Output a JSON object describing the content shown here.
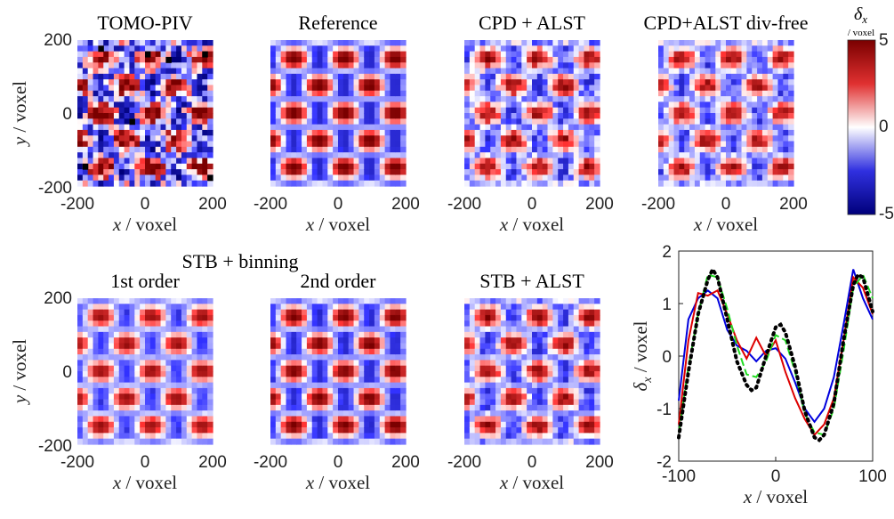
{
  "colormap": {
    "negative_color": "#00007a",
    "zero_color": "#ffffff",
    "positive_color": "#7a0000",
    "symbol": "δ",
    "subscript": "x",
    "unit": "/ voxel",
    "ticks": [
      "5",
      "0",
      "-5"
    ],
    "range": [
      -5,
      5
    ]
  },
  "chart_data": [
    {
      "type": "heatmap",
      "title": "TOMO-PIV",
      "xlabel_var": "x",
      "xlabel_unit": "/ voxel",
      "ylabel_var": "y",
      "ylabel_unit": "/ voxel",
      "xticks": [
        "-200",
        "0",
        "200"
      ],
      "yticks": [
        "200",
        "0",
        "-200"
      ],
      "xlim": [
        -200,
        200
      ],
      "ylim": [
        -200,
        200
      ],
      "field": "δx(x,y)",
      "amplitude": 1.0,
      "noise": 0.55
    },
    {
      "type": "heatmap",
      "title": "Reference",
      "xlabel_var": "x",
      "xlabel_unit": "/ voxel",
      "ylabel_var": "",
      "ylabel_unit": "",
      "xticks": [
        "-200",
        "0",
        "200"
      ],
      "yticks": [],
      "xlim": [
        -200,
        200
      ],
      "ylim": [
        -200,
        200
      ],
      "field": "δx(x,y)",
      "amplitude": 1.0,
      "noise": 0.0
    },
    {
      "type": "heatmap",
      "title": "CPD + ALST",
      "xlabel_var": "x",
      "xlabel_unit": "/ voxel",
      "ylabel_var": "",
      "ylabel_unit": "",
      "xticks": [
        "-200",
        "0",
        "200"
      ],
      "yticks": [],
      "xlim": [
        -200,
        200
      ],
      "ylim": [
        -200,
        200
      ],
      "field": "δx(x,y)",
      "amplitude": 0.75,
      "noise": 0.22
    },
    {
      "type": "heatmap",
      "title": "CPD+ALST div-free",
      "xlabel_var": "x",
      "xlabel_unit": "/ voxel",
      "ylabel_var": "",
      "ylabel_unit": "",
      "xticks": [
        "-200",
        "0",
        "200"
      ],
      "yticks": [],
      "xlim": [
        -200,
        200
      ],
      "ylim": [
        -200,
        200
      ],
      "field": "δx(x,y)",
      "amplitude": 0.75,
      "noise": 0.18
    },
    {
      "type": "heatmap",
      "title": "1st order",
      "xlabel_var": "x",
      "xlabel_unit": "/ voxel",
      "ylabel_var": "y",
      "ylabel_unit": "/ voxel",
      "xticks": [
        "-200",
        "0",
        "200"
      ],
      "yticks": [
        "200",
        "0",
        "-200"
      ],
      "xlim": [
        -200,
        200
      ],
      "ylim": [
        -200,
        200
      ],
      "field": "δx(x,y)",
      "amplitude": 0.8,
      "noise": 0.05
    },
    {
      "type": "heatmap",
      "title": "2nd order",
      "xlabel_var": "x",
      "xlabel_unit": "/ voxel",
      "ylabel_var": "",
      "ylabel_unit": "",
      "xticks": [
        "-200",
        "0",
        "200"
      ],
      "yticks": [],
      "xlim": [
        -200,
        200
      ],
      "ylim": [
        -200,
        200
      ],
      "field": "δx(x,y)",
      "amplitude": 0.95,
      "noise": 0.04
    },
    {
      "type": "heatmap",
      "title": "STB + ALST",
      "xlabel_var": "x",
      "xlabel_unit": "/ voxel",
      "ylabel_var": "",
      "ylabel_unit": "",
      "xticks": [
        "-200",
        "0",
        "200"
      ],
      "yticks": [],
      "xlim": [
        -200,
        200
      ],
      "ylim": [
        -200,
        200
      ],
      "field": "δx(x,y)",
      "amplitude": 0.8,
      "noise": 0.15
    },
    {
      "type": "line",
      "xlabel_var": "x",
      "xlabel_unit": "/ voxel",
      "ylabel_var": "δ",
      "ylabel_sub": "x",
      "ylabel_unit": "/ voxel",
      "xlim": [
        -100,
        100
      ],
      "ylim": [
        -2,
        2
      ],
      "xticks": [
        "-100",
        "0",
        "100"
      ],
      "yticks": [
        "2",
        "1",
        "0",
        "-1",
        "-2"
      ],
      "grid": false,
      "series": [
        {
          "color": "#0000dd",
          "style": "solid",
          "points": [
            [
              -100,
              -0.85
            ],
            [
              -90,
              0.7
            ],
            [
              -80,
              1.1
            ],
            [
              -70,
              1.25
            ],
            [
              -60,
              1.1
            ],
            [
              -50,
              0.5
            ],
            [
              -40,
              0.2
            ],
            [
              -30,
              0.1
            ],
            [
              -20,
              -0.1
            ],
            [
              -10,
              0.1
            ],
            [
              0,
              0.15
            ],
            [
              10,
              -0.05
            ],
            [
              20,
              -0.5
            ],
            [
              30,
              -1.0
            ],
            [
              40,
              -1.25
            ],
            [
              50,
              -1.0
            ],
            [
              60,
              -0.4
            ],
            [
              70,
              0.6
            ],
            [
              80,
              1.65
            ],
            [
              90,
              1.1
            ],
            [
              100,
              0.7
            ]
          ]
        },
        {
          "color": "#dd0000",
          "style": "solid",
          "points": [
            [
              -100,
              -1.3
            ],
            [
              -90,
              0.3
            ],
            [
              -80,
              1.2
            ],
            [
              -70,
              1.15
            ],
            [
              -60,
              1.25
            ],
            [
              -50,
              0.8
            ],
            [
              -40,
              0.3
            ],
            [
              -30,
              -0.05
            ],
            [
              -20,
              0.35
            ],
            [
              -10,
              0.0
            ],
            [
              0,
              0.3
            ],
            [
              10,
              -0.3
            ],
            [
              20,
              -0.8
            ],
            [
              30,
              -1.2
            ],
            [
              40,
              -1.5
            ],
            [
              50,
              -1.3
            ],
            [
              60,
              -0.8
            ],
            [
              70,
              0.3
            ],
            [
              80,
              1.5
            ],
            [
              90,
              1.3
            ],
            [
              100,
              0.8
            ]
          ]
        },
        {
          "color": "#22dd22",
          "style": "dashed",
          "points": [
            [
              -100,
              -1.45
            ],
            [
              -90,
              -0.2
            ],
            [
              -80,
              0.8
            ],
            [
              -70,
              1.55
            ],
            [
              -60,
              1.5
            ],
            [
              -50,
              0.9
            ],
            [
              -40,
              0.2
            ],
            [
              -30,
              -0.35
            ],
            [
              -20,
              -0.4
            ],
            [
              -10,
              -0.1
            ],
            [
              0,
              0.4
            ],
            [
              10,
              0.3
            ],
            [
              20,
              -0.3
            ],
            [
              30,
              -1.1
            ],
            [
              40,
              -1.45
            ],
            [
              50,
              -1.5
            ],
            [
              60,
              -1.0
            ],
            [
              70,
              0.1
            ],
            [
              80,
              1.3
            ],
            [
              90,
              1.55
            ],
            [
              100,
              1.1
            ]
          ]
        },
        {
          "color": "#000000",
          "style": "dotted",
          "points": [
            [
              -100,
              -1.55
            ],
            [
              -90,
              -0.3
            ],
            [
              -80,
              0.8
            ],
            [
              -70,
              1.45
            ],
            [
              -65,
              1.65
            ],
            [
              -60,
              1.5
            ],
            [
              -50,
              0.7
            ],
            [
              -40,
              -0.1
            ],
            [
              -30,
              -0.55
            ],
            [
              -25,
              -0.65
            ],
            [
              -20,
              -0.6
            ],
            [
              -10,
              0.0
            ],
            [
              0,
              0.55
            ],
            [
              5,
              0.6
            ],
            [
              10,
              0.45
            ],
            [
              20,
              -0.2
            ],
            [
              30,
              -1.05
            ],
            [
              40,
              -1.55
            ],
            [
              45,
              -1.6
            ],
            [
              50,
              -1.5
            ],
            [
              60,
              -0.9
            ],
            [
              70,
              0.3
            ],
            [
              80,
              1.35
            ],
            [
              85,
              1.55
            ],
            [
              90,
              1.5
            ],
            [
              100,
              0.85
            ]
          ]
        }
      ]
    }
  ],
  "group_title": "STB + binning"
}
